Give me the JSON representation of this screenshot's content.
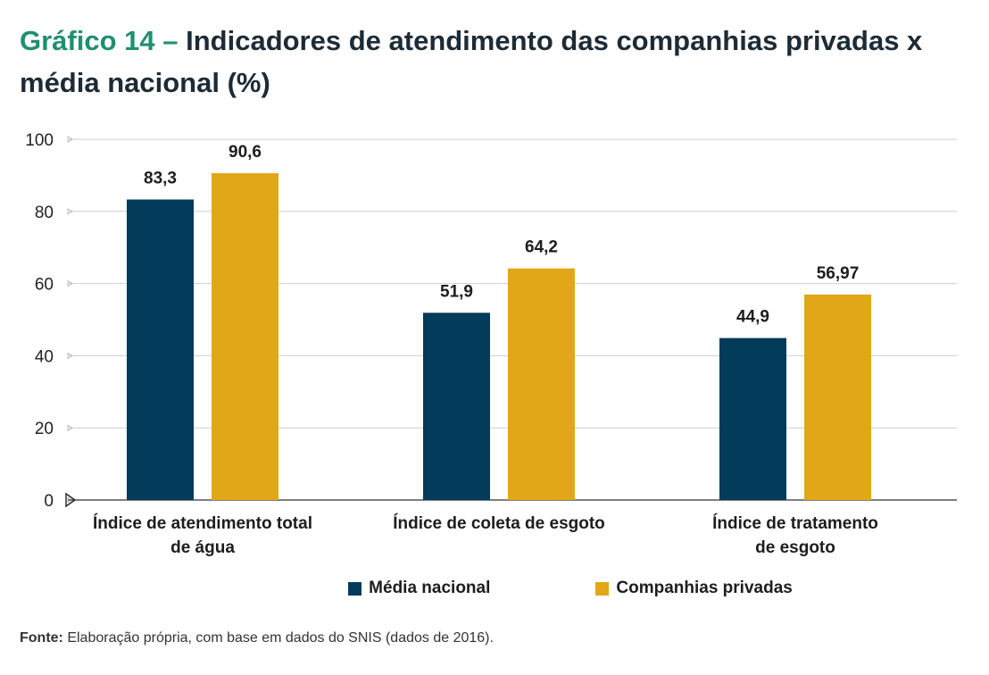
{
  "title": {
    "prefix": "Gráfico 14 –",
    "text": "Indicadores de atendimento das companhias privadas x média nacional (%)"
  },
  "chart_data": {
    "type": "bar",
    "categories": [
      [
        "Índice de atendimento total",
        "de água"
      ],
      [
        "Índice de coleta de esgoto"
      ],
      [
        "Índice de tratamento",
        "de esgoto"
      ]
    ],
    "series": [
      {
        "name": "Média nacional",
        "color": "#033b5a",
        "values": [
          83.3,
          51.9,
          44.9
        ],
        "labels": [
          "83,3",
          "51,9",
          "44,9"
        ]
      },
      {
        "name": "Companhias privadas",
        "color": "#e2a718",
        "values": [
          90.6,
          64.2,
          56.97
        ],
        "labels": [
          "90,6",
          "64,2",
          "56,97"
        ]
      }
    ],
    "ylim": [
      0,
      100
    ],
    "yticks": [
      0,
      20,
      40,
      60,
      80,
      100
    ],
    "grid": true,
    "legend_position": "bottom-center"
  },
  "source": {
    "label": "Fonte:",
    "text": "Elaboração própria, com base em dados do SNIS (dados de 2016)."
  }
}
